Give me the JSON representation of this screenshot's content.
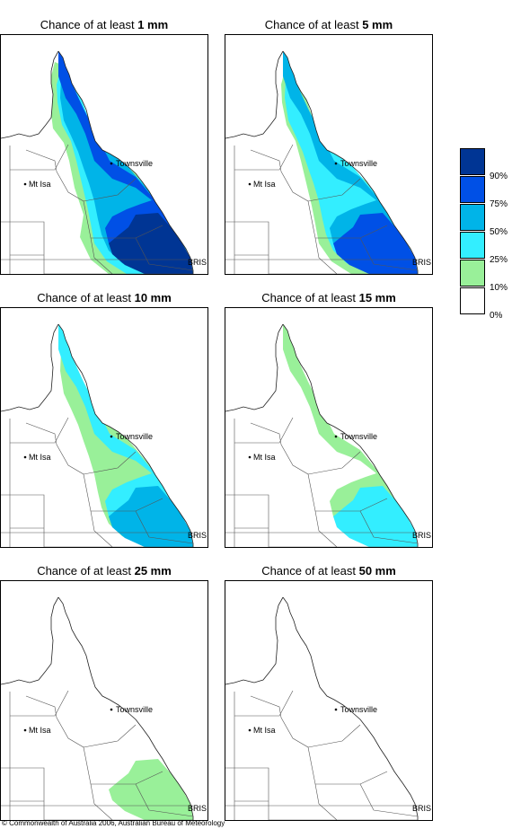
{
  "panels": [
    {
      "prefix": "Chance of at least",
      "amount": "1 mm",
      "level": 5
    },
    {
      "prefix": "Chance of at least",
      "amount": "5 mm",
      "level": 4
    },
    {
      "prefix": "Chance of at least",
      "amount": "10 mm",
      "level": 3
    },
    {
      "prefix": "Chance of at least",
      "amount": "15 mm",
      "level": 2
    },
    {
      "prefix": "Chance of at least",
      "amount": "25 mm",
      "level": 1
    },
    {
      "prefix": "Chance of at least",
      "amount": "50 mm",
      "level": 0
    }
  ],
  "map_labels": {
    "townsville": "Townsville",
    "mt_isa": "Mt Isa",
    "bris": "BRIS"
  },
  "legend": {
    "colors": [
      "#003594",
      "#0050e6",
      "#00b4e8",
      "#33eeff",
      "#99f099",
      "#ffffff"
    ],
    "labels": [
      "90%",
      "75%",
      "50%",
      "25%",
      "10%",
      "0%"
    ]
  },
  "copyright": "© Commonwealth of Australia 2006, Australian Bureau of Meteorology"
}
